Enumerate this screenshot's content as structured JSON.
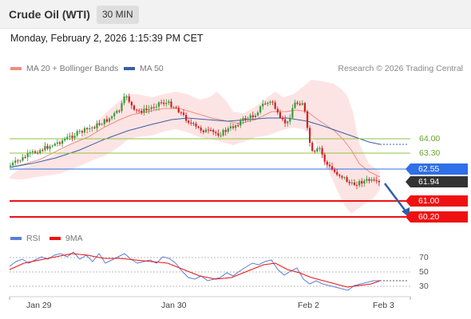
{
  "header": {
    "instrument": "Crude Oil (WTI)",
    "timeframe": "30 MIN"
  },
  "datetime": "Monday, February 2, 2026 1:15:39 PM CET",
  "legend": {
    "ma20": {
      "label": "MA 20 + Bollinger Bands",
      "color": "#f28b82"
    },
    "ma50": {
      "label": "MA 50",
      "color": "#3b5ea8"
    }
  },
  "copyright": "Research © 2026 Trading Central",
  "price_levels": {
    "r2": {
      "label": "64.00",
      "color": "#8dc63f"
    },
    "r1": {
      "label": "63.30",
      "color": "#8dc63f"
    },
    "pivot": {
      "label": "62.55",
      "color": "#2f6fe8"
    },
    "last": {
      "label": "61.94",
      "color": "#333333"
    },
    "s1": {
      "label": "61.00",
      "color": "#ee1111"
    },
    "s2": {
      "label": "60.20",
      "color": "#ee1111"
    }
  },
  "rsi_legend": {
    "rsi": {
      "label": "RSI",
      "color": "#5b7fd6"
    },
    "ma9": {
      "label": "9MA",
      "color": "#ee1111"
    }
  },
  "rsi_levels": [
    "70",
    "50",
    "30"
  ],
  "x_axis_labels": [
    "Jan 29",
    "Jan 30",
    "Feb 2",
    "Feb 3"
  ],
  "colors": {
    "bull": "#3a9a3a",
    "bear": "#d02020",
    "band_fill": "#fde1e1",
    "arrow": "#2f5fa8"
  }
}
